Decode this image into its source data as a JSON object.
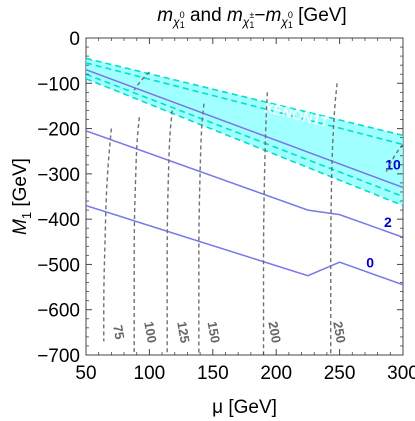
{
  "colors": {
    "band_fill": "#80ffff",
    "band_edge": "#00e0c8",
    "mass_contour": "#707070",
    "split_line": "#7878e6",
    "split_label": "#0000c8",
    "band_label": "#ffffff"
  },
  "chart_data": {
    "type": "contour",
    "title": {
      "prefix": "m",
      "sub1": "χ",
      "sup1": "0",
      "idx1": "1",
      "mid": " and ",
      "prefix2": "m",
      "sub2": "χ",
      "sup2": "±",
      "idx2": "1",
      "minus": "−",
      "prefix3": "m",
      "sub3": "χ",
      "sup3": "0",
      "idx3": "1",
      "unit": " [GeV]"
    },
    "xlabel": "μ [GeV]",
    "ylabel": "M",
    "ylabel_sub": "1",
    "ylabel_unit": " [GeV]",
    "xlim": [
      50,
      300
    ],
    "ylim": [
      -700,
      0
    ],
    "x_ticks": [
      "50",
      "100",
      "150",
      "200",
      "250",
      "300"
    ],
    "x_tick_values": [
      50,
      100,
      150,
      200,
      250,
      300
    ],
    "y_ticks": [
      "0",
      "−100",
      "−200",
      "−300",
      "−400",
      "−500",
      "−600",
      "−700"
    ],
    "y_tick_values": [
      0,
      -100,
      -200,
      -300,
      -400,
      -500,
      -600,
      -700
    ],
    "band": {
      "label": "XENON1T",
      "label_position": [
        215,
        -180
      ],
      "upper": [
        [
          50,
          -45
        ],
        [
          300,
          -215
        ]
      ],
      "lower": [
        [
          50,
          -90
        ],
        [
          300,
          -370
        ]
      ],
      "inner": [
        [
          50,
          -55
        ],
        [
          300,
          -235
        ]
      ],
      "inner2": [
        [
          50,
          -80
        ],
        [
          300,
          -350
        ]
      ]
    },
    "mass_contours": [
      {
        "label": "75",
        "label_at": [
          75,
          -650
        ],
        "points": [
          [
            70,
            -200
          ],
          [
            68,
            -260
          ],
          [
            66,
            -340
          ],
          [
            65,
            -450
          ],
          [
            64,
            -550
          ],
          [
            64,
            -670
          ]
        ]
      },
      {
        "label": "100",
        "label_at": [
          100,
          -650
        ],
        "points": [
          [
            92,
            -175
          ],
          [
            90,
            -235
          ],
          [
            89,
            -320
          ],
          [
            88,
            -420
          ],
          [
            88,
            -540
          ],
          [
            88,
            -700
          ]
        ]
      },
      {
        "label": "125",
        "label_at": [
          126,
          -650
        ],
        "points": [
          [
            118,
            -160
          ],
          [
            116,
            -215
          ],
          [
            115,
            -300
          ],
          [
            114,
            -420
          ],
          [
            114,
            -550
          ],
          [
            114,
            -700
          ]
        ]
      },
      {
        "label": "150",
        "label_at": [
          150,
          -650
        ],
        "points": [
          [
            143,
            -145
          ],
          [
            141,
            -200
          ],
          [
            140,
            -290
          ],
          [
            139,
            -420
          ],
          [
            139,
            -550
          ],
          [
            139,
            -700
          ]
        ]
      },
      {
        "label": "200",
        "label_at": [
          198,
          -650
        ],
        "points": [
          [
            193,
            -120
          ],
          [
            192,
            -180
          ],
          [
            191,
            -270
          ],
          [
            190,
            -420
          ],
          [
            190,
            -550
          ],
          [
            190,
            -700
          ]
        ]
      },
      {
        "label": "250",
        "label_at": [
          249,
          -650
        ],
        "points": [
          [
            248,
            -100
          ],
          [
            246,
            -155
          ],
          [
            244,
            -260
          ],
          [
            243,
            -420
          ],
          [
            243,
            -550
          ],
          [
            243,
            -700
          ]
        ]
      },
      {
        "label": "",
        "label_at": null,
        "points": [
          [
            300,
            -235
          ],
          [
            293,
            -260
          ],
          [
            286,
            -300
          ]
        ]
      },
      {
        "label": "",
        "label_at": null,
        "points": [
          [
            100,
            -75
          ],
          [
            93,
            -95
          ],
          [
            88,
            -115
          ]
        ]
      }
    ],
    "split_lines": [
      {
        "label": "10",
        "label_at": [
          286,
          -290
        ],
        "points": [
          [
            50,
            -70
          ],
          [
            300,
            -330
          ]
        ]
      },
      {
        "label": "2",
        "label_at": [
          285,
          -417
        ],
        "points": [
          [
            50,
            -205
          ],
          [
            225,
            -380
          ],
          [
            250,
            -390
          ],
          [
            300,
            -440
          ]
        ]
      },
      {
        "label": "0",
        "label_at": [
          271,
          -507
        ],
        "points": [
          [
            50,
            -370
          ],
          [
            225,
            -525
          ],
          [
            250,
            -495
          ],
          [
            300,
            -545
          ]
        ]
      }
    ]
  }
}
